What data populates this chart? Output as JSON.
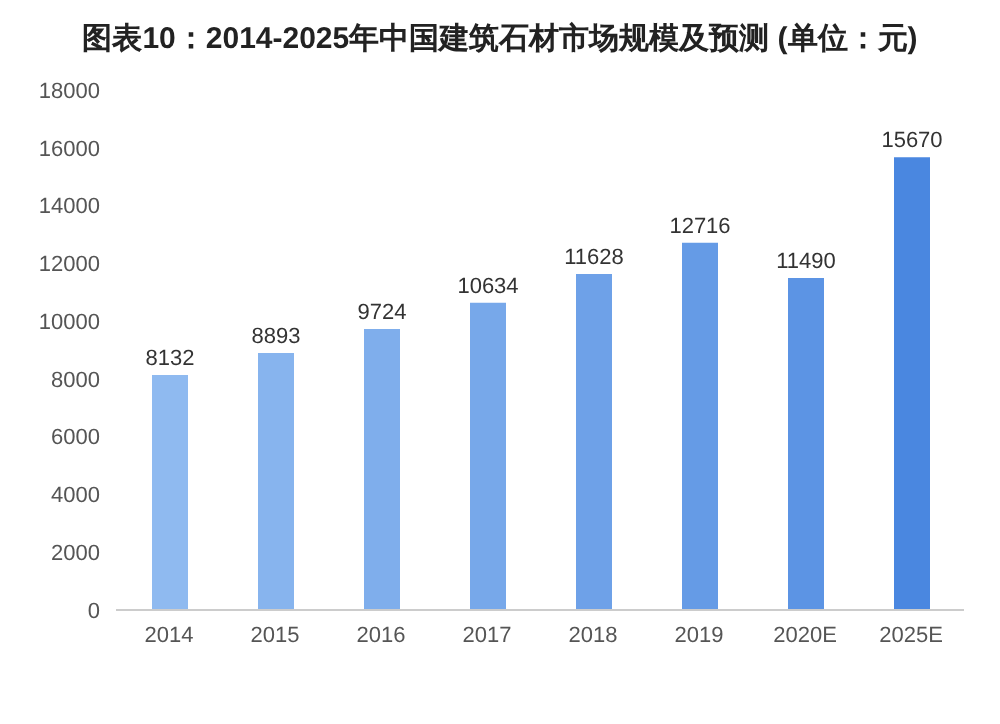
{
  "chart_data": {
    "type": "bar",
    "title": "图表10：2014-2025年中国建筑石材市场规模及预测 (单位：元)",
    "categories": [
      "2014",
      "2015",
      "2016",
      "2017",
      "2018",
      "2019",
      "2020E",
      "2025E"
    ],
    "values": [
      8132,
      8893,
      9724,
      10634,
      11628,
      12716,
      11490,
      15670
    ],
    "colors": [
      "#8fbaf0",
      "#87b4ee",
      "#7faeec",
      "#77a8ea",
      "#6ea1e8",
      "#659be6",
      "#5c94e4",
      "#4a87e0"
    ],
    "ylim": [
      0,
      18000
    ],
    "yticks": [
      0,
      2000,
      4000,
      6000,
      8000,
      10000,
      12000,
      14000,
      16000,
      18000
    ],
    "grid": false,
    "data_labels": true
  }
}
